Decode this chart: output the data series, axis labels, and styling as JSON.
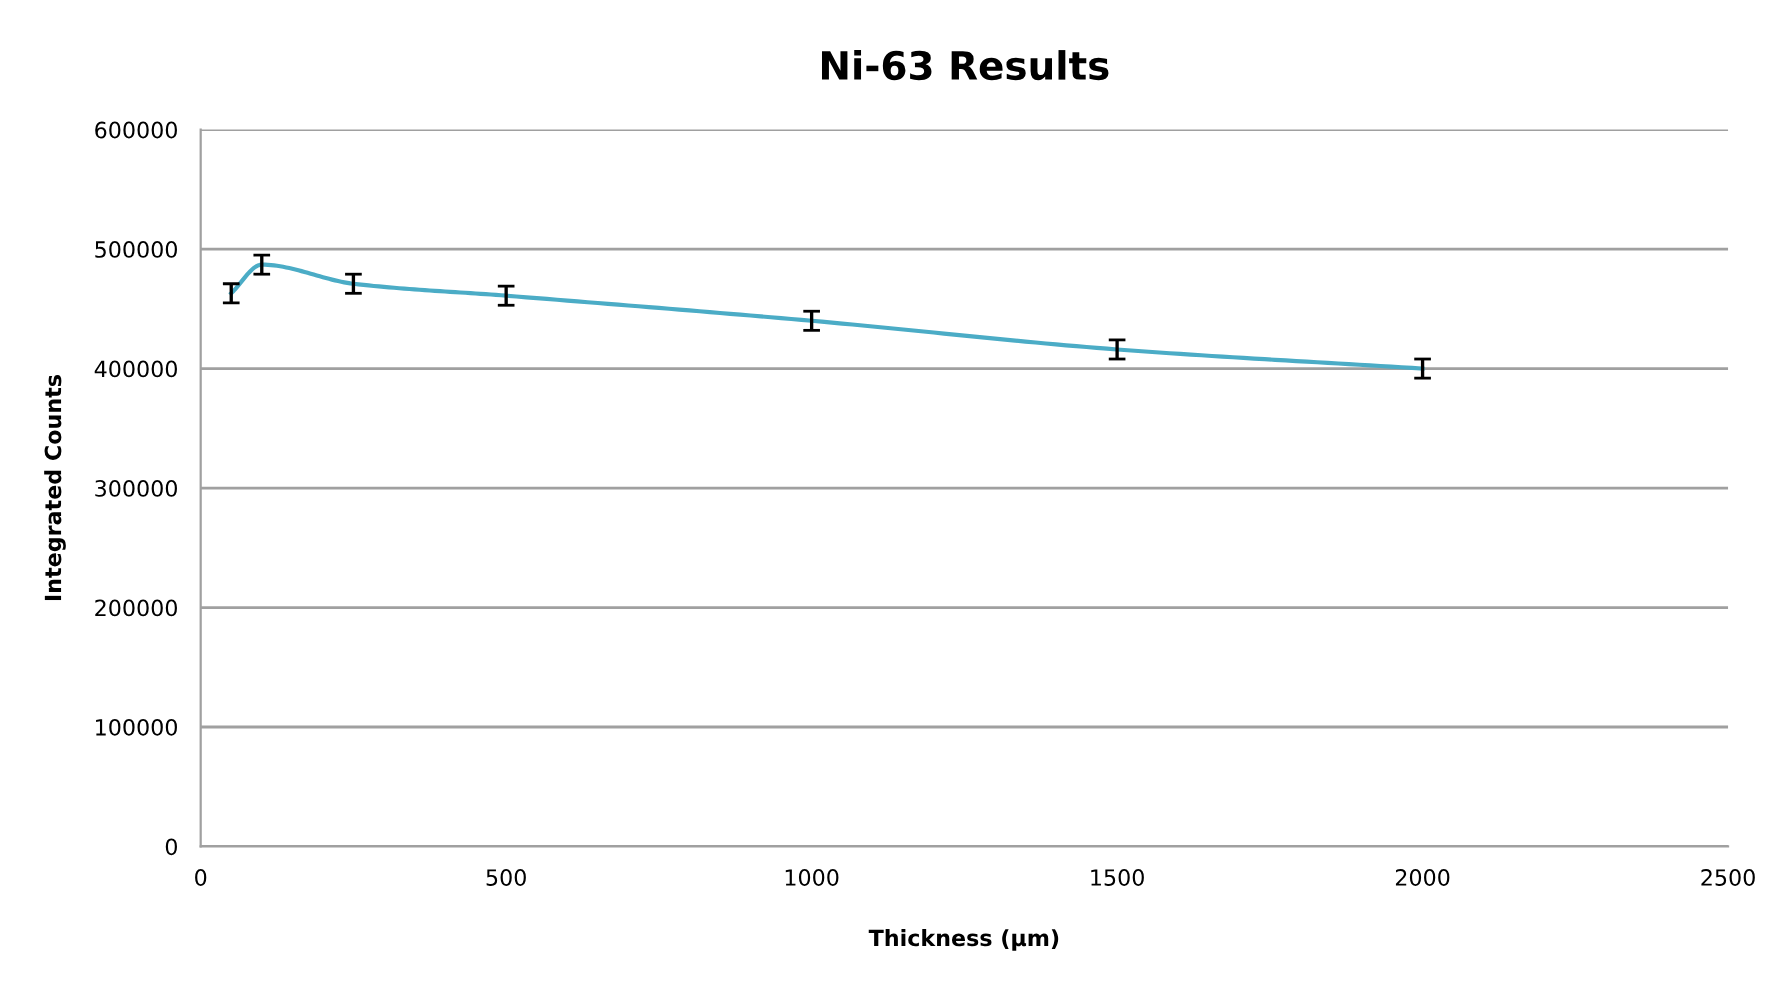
{
  "chart_data": {
    "type": "line",
    "title": "Ni-63 Results",
    "xlabel": "Thickness (µm)",
    "ylabel": "Integrated Counts",
    "x": [
      50,
      100,
      250,
      500,
      1000,
      1500,
      2000
    ],
    "series": [
      {
        "color": "#4bacc6",
        "values": [
          463000,
          487000,
          471000,
          461000,
          440000,
          416000,
          400000
        ],
        "errors": [
          8000,
          8000,
          8000,
          8000,
          8000,
          8000,
          8000
        ]
      }
    ],
    "xlim": [
      0,
      2500
    ],
    "xticks": [
      0,
      500,
      1000,
      1500,
      2000,
      2500
    ],
    "ylim": [
      0,
      600000
    ],
    "yticks": [
      0,
      100000,
      200000,
      300000,
      400000,
      500000,
      600000
    ],
    "grid": "y",
    "marker": "none",
    "line_style": "solid"
  }
}
